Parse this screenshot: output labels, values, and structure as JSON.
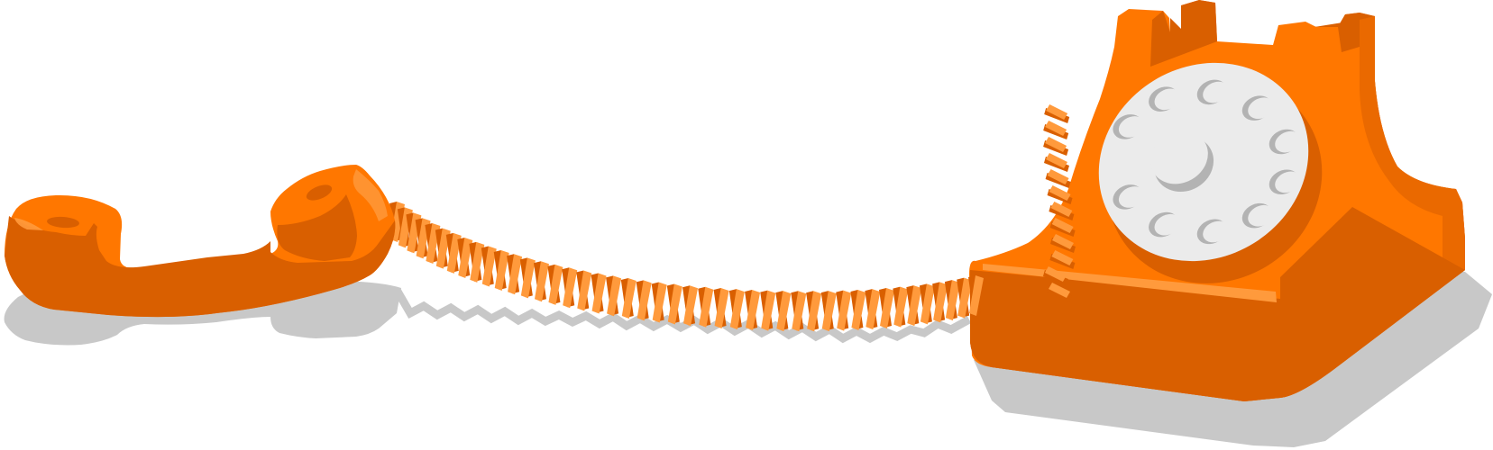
{
  "scene": {
    "subject": "rotary-telephone",
    "colors": {
      "orange": "#ff7700",
      "orange_dark": "#d95f00",
      "orange_light": "#ff9a3c",
      "dial_face": "#ebebeb",
      "dial_hole": "#b3b3b3",
      "shadow": "#c8c8c8"
    },
    "dial": {
      "finger_holes": 10
    },
    "cord": {
      "style": "coiled"
    }
  }
}
